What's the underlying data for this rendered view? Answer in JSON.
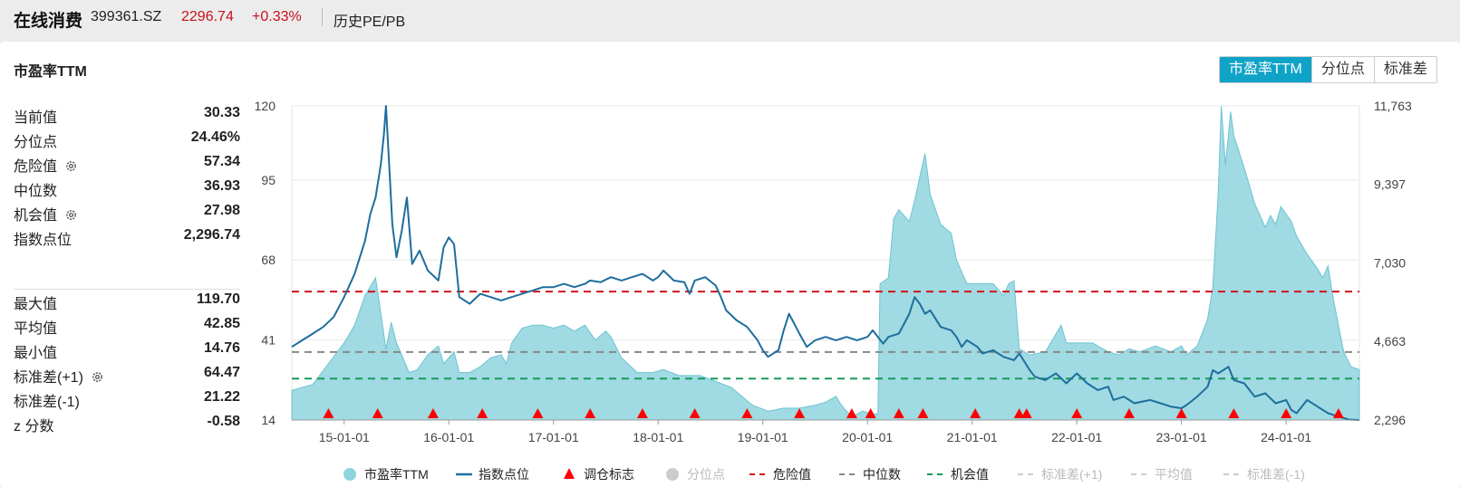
{
  "header": {
    "name": "在线消费",
    "code": "399361.SZ",
    "price": "2296.74",
    "change": "+0.33%",
    "view": "历史PE/PB"
  },
  "card": {
    "title": "市盈率TTM"
  },
  "toggle": [
    {
      "label": "市盈率TTM",
      "active": true
    },
    {
      "label": "分位点",
      "active": false
    },
    {
      "label": "标准差",
      "active": false
    }
  ],
  "stats_top": [
    {
      "label": "当前值",
      "value": "30.33",
      "gear": false
    },
    {
      "label": "分位点",
      "value": "24.46%",
      "gear": false
    },
    {
      "label": "危险值",
      "value": "57.34",
      "gear": true
    },
    {
      "label": "中位数",
      "value": "36.93",
      "gear": false
    },
    {
      "label": "机会值",
      "value": "27.98",
      "gear": true
    },
    {
      "label": "指数点位",
      "value": "2,296.74",
      "gear": false
    }
  ],
  "stats_bottom": [
    {
      "label": "最大值",
      "value": "119.70",
      "gear": false
    },
    {
      "label": "平均值",
      "value": "42.85",
      "gear": false
    },
    {
      "label": "最小值",
      "value": "14.76",
      "gear": false
    },
    {
      "label": "标准差(+1)",
      "value": "64.47",
      "gear": true
    },
    {
      "label": "标准差(-1)",
      "value": "21.22",
      "gear": false
    },
    {
      "label": "z 分数",
      "value": "-0.58",
      "gear": false
    }
  ],
  "colors": {
    "pe_fill": "#8fd3de",
    "pe_line": "#6cc4d2",
    "index_line": "#1f6e9c",
    "danger": "#d0141c",
    "median": "#888888",
    "opportunity": "#169a5a",
    "marker": "#ff0000",
    "accent": "#10a3c8"
  },
  "chart_data": {
    "type": "area+line",
    "x_ticks": [
      "15-01-01",
      "16-01-01",
      "17-01-01",
      "18-01-01",
      "19-01-01",
      "20-01-01",
      "21-01-01",
      "22-01-01",
      "23-01-01",
      "24-01-01"
    ],
    "y_left": {
      "ticks": [
        "120",
        "95",
        "68",
        "41",
        "14"
      ],
      "range": [
        14,
        120
      ]
    },
    "y_right": {
      "ticks": [
        "11,763",
        "9,397",
        "7,030",
        "4,663",
        "2,296"
      ],
      "range": [
        2296,
        11763
      ]
    },
    "x_range": [
      2014.5,
      2024.7
    ],
    "reference_lines": [
      {
        "name": "危险值",
        "value": 57.34,
        "color": "#d0141c",
        "style": "dash"
      },
      {
        "name": "中位数",
        "value": 36.93,
        "color": "#888888",
        "style": "dash"
      },
      {
        "name": "机会值",
        "value": 27.98,
        "color": "#169a5a",
        "style": "dash"
      }
    ],
    "pe_series": {
      "name": "市盈率TTM",
      "points": [
        [
          2014.5,
          24
        ],
        [
          2014.7,
          26
        ],
        [
          2014.85,
          33
        ],
        [
          2015.0,
          40
        ],
        [
          2015.1,
          46
        ],
        [
          2015.2,
          56
        ],
        [
          2015.3,
          62
        ],
        [
          2015.35,
          50
        ],
        [
          2015.4,
          38
        ],
        [
          2015.45,
          47
        ],
        [
          2015.5,
          40
        ],
        [
          2015.55,
          36
        ],
        [
          2015.62,
          30
        ],
        [
          2015.7,
          31
        ],
        [
          2015.8,
          36
        ],
        [
          2015.9,
          39
        ],
        [
          2015.95,
          33
        ],
        [
          2016.05,
          37
        ],
        [
          2016.1,
          30
        ],
        [
          2016.2,
          30
        ],
        [
          2016.3,
          32
        ],
        [
          2016.4,
          35
        ],
        [
          2016.5,
          36
        ],
        [
          2016.55,
          33
        ],
        [
          2016.6,
          40
        ],
        [
          2016.7,
          45
        ],
        [
          2016.8,
          46
        ],
        [
          2016.9,
          46
        ],
        [
          2017.0,
          45
        ],
        [
          2017.1,
          46
        ],
        [
          2017.2,
          44
        ],
        [
          2017.3,
          46
        ],
        [
          2017.4,
          41
        ],
        [
          2017.5,
          44
        ],
        [
          2017.55,
          42
        ],
        [
          2017.65,
          35
        ],
        [
          2017.8,
          30
        ],
        [
          2017.95,
          30
        ],
        [
          2018.05,
          31
        ],
        [
          2018.2,
          29
        ],
        [
          2018.4,
          29
        ],
        [
          2018.55,
          27
        ],
        [
          2018.7,
          25
        ],
        [
          2018.9,
          19
        ],
        [
          2019.05,
          17
        ],
        [
          2019.2,
          18
        ],
        [
          2019.35,
          18
        ],
        [
          2019.5,
          19
        ],
        [
          2019.6,
          20
        ],
        [
          2019.7,
          22
        ],
        [
          2019.75,
          19
        ],
        [
          2019.85,
          15
        ],
        [
          2019.95,
          17
        ],
        [
          2020.05,
          16
        ],
        [
          2020.1,
          16
        ],
        [
          2020.12,
          60
        ],
        [
          2020.2,
          62
        ],
        [
          2020.25,
          82
        ],
        [
          2020.3,
          85
        ],
        [
          2020.4,
          81
        ],
        [
          2020.45,
          88
        ],
        [
          2020.5,
          96
        ],
        [
          2020.55,
          104
        ],
        [
          2020.6,
          90
        ],
        [
          2020.7,
          80
        ],
        [
          2020.8,
          77
        ],
        [
          2020.85,
          68
        ],
        [
          2020.95,
          60
        ],
        [
          2021.0,
          60
        ],
        [
          2021.1,
          60
        ],
        [
          2021.2,
          60
        ],
        [
          2021.3,
          56
        ],
        [
          2021.35,
          60
        ],
        [
          2021.4,
          61
        ],
        [
          2021.45,
          38
        ],
        [
          2021.55,
          36
        ],
        [
          2021.7,
          37
        ],
        [
          2021.85,
          46
        ],
        [
          2021.9,
          40
        ],
        [
          2022.0,
          40
        ],
        [
          2022.15,
          40
        ],
        [
          2022.3,
          37
        ],
        [
          2022.4,
          36
        ],
        [
          2022.5,
          38
        ],
        [
          2022.6,
          37
        ],
        [
          2022.75,
          39
        ],
        [
          2022.9,
          37
        ],
        [
          2023.0,
          39
        ],
        [
          2023.05,
          36
        ],
        [
          2023.15,
          39
        ],
        [
          2023.25,
          48
        ],
        [
          2023.3,
          59
        ],
        [
          2023.35,
          90
        ],
        [
          2023.38,
          120
        ],
        [
          2023.42,
          100
        ],
        [
          2023.47,
          118
        ],
        [
          2023.5,
          110
        ],
        [
          2023.6,
          99
        ],
        [
          2023.7,
          87
        ],
        [
          2023.8,
          79
        ],
        [
          2023.85,
          83
        ],
        [
          2023.9,
          80
        ],
        [
          2023.95,
          86
        ],
        [
          2024.05,
          81
        ],
        [
          2024.1,
          76
        ],
        [
          2024.2,
          70
        ],
        [
          2024.3,
          65
        ],
        [
          2024.35,
          62
        ],
        [
          2024.4,
          66
        ],
        [
          2024.45,
          55
        ],
        [
          2024.55,
          37
        ],
        [
          2024.62,
          32
        ],
        [
          2024.7,
          31
        ]
      ]
    },
    "index_series": {
      "name": "指数点位",
      "points": [
        [
          2014.5,
          4500
        ],
        [
          2014.6,
          4700
        ],
        [
          2014.7,
          4900
        ],
        [
          2014.8,
          5100
        ],
        [
          2014.9,
          5400
        ],
        [
          2015.0,
          6000
        ],
        [
          2015.1,
          6700
        ],
        [
          2015.2,
          7700
        ],
        [
          2015.25,
          8500
        ],
        [
          2015.3,
          9000
        ],
        [
          2015.35,
          10000
        ],
        [
          2015.38,
          10900
        ],
        [
          2015.4,
          11763
        ],
        [
          2015.43,
          10000
        ],
        [
          2015.46,
          8200
        ],
        [
          2015.5,
          7200
        ],
        [
          2015.55,
          8000
        ],
        [
          2015.6,
          9000
        ],
        [
          2015.65,
          7000
        ],
        [
          2015.72,
          7400
        ],
        [
          2015.8,
          6800
        ],
        [
          2015.9,
          6500
        ],
        [
          2015.95,
          7500
        ],
        [
          2016.0,
          7800
        ],
        [
          2016.05,
          7600
        ],
        [
          2016.1,
          6000
        ],
        [
          2016.2,
          5800
        ],
        [
          2016.3,
          6100
        ],
        [
          2016.4,
          6000
        ],
        [
          2016.5,
          5900
        ],
        [
          2016.6,
          6000
        ],
        [
          2016.7,
          6100
        ],
        [
          2016.8,
          6200
        ],
        [
          2016.9,
          6300
        ],
        [
          2017.0,
          6300
        ],
        [
          2017.1,
          6400
        ],
        [
          2017.2,
          6300
        ],
        [
          2017.3,
          6400
        ],
        [
          2017.35,
          6500
        ],
        [
          2017.45,
          6450
        ],
        [
          2017.55,
          6600
        ],
        [
          2017.65,
          6500
        ],
        [
          2017.75,
          6600
        ],
        [
          2017.85,
          6700
        ],
        [
          2017.9,
          6600
        ],
        [
          2017.95,
          6500
        ],
        [
          2018.0,
          6600
        ],
        [
          2018.05,
          6800
        ],
        [
          2018.1,
          6650
        ],
        [
          2018.15,
          6500
        ],
        [
          2018.25,
          6450
        ],
        [
          2018.3,
          6100
        ],
        [
          2018.35,
          6500
        ],
        [
          2018.45,
          6600
        ],
        [
          2018.55,
          6350
        ],
        [
          2018.6,
          6000
        ],
        [
          2018.65,
          5600
        ],
        [
          2018.75,
          5300
        ],
        [
          2018.85,
          5100
        ],
        [
          2018.95,
          4700
        ],
        [
          2019.0,
          4400
        ],
        [
          2019.05,
          4200
        ],
        [
          2019.15,
          4400
        ],
        [
          2019.2,
          5000
        ],
        [
          2019.25,
          5500
        ],
        [
          2019.3,
          5200
        ],
        [
          2019.35,
          4900
        ],
        [
          2019.42,
          4500
        ],
        [
          2019.5,
          4700
        ],
        [
          2019.6,
          4800
        ],
        [
          2019.7,
          4700
        ],
        [
          2019.8,
          4800
        ],
        [
          2019.9,
          4700
        ],
        [
          2020.0,
          4800
        ],
        [
          2020.05,
          5000
        ],
        [
          2020.1,
          4800
        ],
        [
          2020.15,
          4600
        ],
        [
          2020.2,
          4800
        ],
        [
          2020.3,
          4900
        ],
        [
          2020.35,
          5200
        ],
        [
          2020.4,
          5500
        ],
        [
          2020.45,
          6000
        ],
        [
          2020.5,
          5800
        ],
        [
          2020.55,
          5500
        ],
        [
          2020.6,
          5600
        ],
        [
          2020.7,
          5100
        ],
        [
          2020.8,
          5000
        ],
        [
          2020.85,
          4800
        ],
        [
          2020.9,
          4500
        ],
        [
          2020.95,
          4700
        ],
        [
          2021.05,
          4500
        ],
        [
          2021.1,
          4300
        ],
        [
          2021.2,
          4400
        ],
        [
          2021.3,
          4200
        ],
        [
          2021.4,
          4100
        ],
        [
          2021.45,
          4300
        ],
        [
          2021.55,
          3800
        ],
        [
          2021.6,
          3600
        ],
        [
          2021.7,
          3500
        ],
        [
          2021.8,
          3700
        ],
        [
          2021.9,
          3400
        ],
        [
          2022.0,
          3700
        ],
        [
          2022.1,
          3400
        ],
        [
          2022.2,
          3200
        ],
        [
          2022.3,
          3300
        ],
        [
          2022.35,
          2900
        ],
        [
          2022.45,
          3000
        ],
        [
          2022.55,
          2800
        ],
        [
          2022.7,
          2900
        ],
        [
          2022.8,
          2800
        ],
        [
          2022.9,
          2700
        ],
        [
          2023.0,
          2650
        ],
        [
          2023.05,
          2750
        ],
        [
          2023.15,
          3000
        ],
        [
          2023.25,
          3300
        ],
        [
          2023.3,
          3800
        ],
        [
          2023.35,
          3700
        ],
        [
          2023.45,
          3900
        ],
        [
          2023.5,
          3500
        ],
        [
          2023.6,
          3400
        ],
        [
          2023.7,
          3000
        ],
        [
          2023.8,
          3100
        ],
        [
          2023.9,
          2800
        ],
        [
          2024.0,
          2900
        ],
        [
          2024.05,
          2600
        ],
        [
          2024.1,
          2500
        ],
        [
          2024.2,
          2900
        ],
        [
          2024.3,
          2700
        ],
        [
          2024.4,
          2500
        ],
        [
          2024.5,
          2400
        ],
        [
          2024.6,
          2310
        ],
        [
          2024.7,
          2296
        ]
      ]
    },
    "rebalance_markers": [
      2014.85,
      2015.32,
      2015.85,
      2016.32,
      2016.85,
      2017.35,
      2017.85,
      2018.35,
      2018.85,
      2019.35,
      2019.85,
      2020.03,
      2020.3,
      2020.53,
      2021.03,
      2021.45,
      2021.52,
      2022.0,
      2022.5,
      2023.0,
      2023.5,
      2024.0,
      2024.5
    ],
    "legend": [
      {
        "label": "市盈率TTM",
        "kind": "circle",
        "color": "#8fd3de",
        "active": true
      },
      {
        "label": "指数点位",
        "kind": "line",
        "color": "#1f6e9c",
        "active": true
      },
      {
        "label": "调仓标志",
        "kind": "triangle",
        "color": "#ff0000",
        "active": true
      },
      {
        "label": "分位点",
        "kind": "circle",
        "color": "#cccccc",
        "active": false
      },
      {
        "label": "危险值",
        "kind": "dash",
        "color": "#d0141c",
        "active": true
      },
      {
        "label": "中位数",
        "kind": "dash",
        "color": "#888888",
        "active": true
      },
      {
        "label": "机会值",
        "kind": "dash",
        "color": "#169a5a",
        "active": true
      },
      {
        "label": "标准差(+1)",
        "kind": "dash",
        "color": "#cccccc",
        "active": false
      },
      {
        "label": "平均值",
        "kind": "dash",
        "color": "#cccccc",
        "active": false
      },
      {
        "label": "标准差(-1)",
        "kind": "dash",
        "color": "#cccccc",
        "active": false
      }
    ]
  }
}
